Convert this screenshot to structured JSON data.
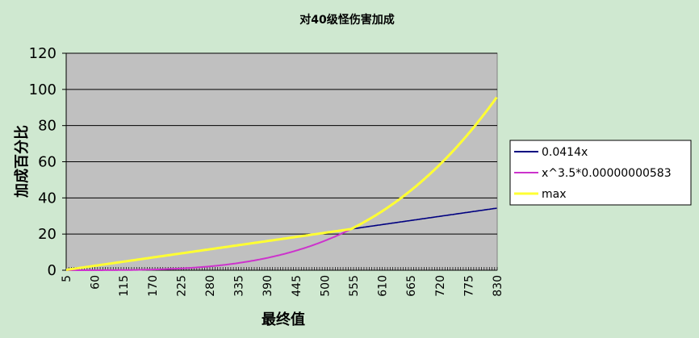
{
  "chart_data": {
    "type": "line",
    "title": "对40级怪伤害加成",
    "xlabel": "最终值",
    "ylabel": "加成百分比",
    "xlim": [
      5,
      830
    ],
    "ylim": [
      0,
      120
    ],
    "yticks": [
      0,
      20,
      40,
      60,
      80,
      100,
      120
    ],
    "xticks": [
      5,
      60,
      115,
      170,
      225,
      280,
      335,
      390,
      445,
      500,
      555,
      610,
      665,
      720,
      775,
      830
    ],
    "grid": "horizontal",
    "plot_background": "#c0c0c0",
    "legend_position": "right",
    "series": [
      {
        "name": "0.0414x",
        "color": "#000080",
        "formula": "linear",
        "coef": 0.0414
      },
      {
        "name": "x^3.5*0.00000000583",
        "color": "#cc33cc",
        "formula": "power",
        "coef": 5.83e-09,
        "exponent": 3.5
      },
      {
        "name": "max",
        "color": "#ffff33",
        "formula": "max"
      }
    ]
  }
}
